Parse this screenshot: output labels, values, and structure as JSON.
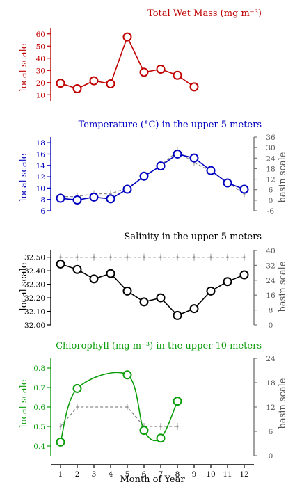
{
  "chart_data": [
    {
      "type": "line",
      "title": "Total Wet Mass (mg m⁻³)",
      "ylabel": "local scale",
      "color": "#c00000",
      "ylim": [
        5,
        65
      ],
      "yticks": [
        10,
        20,
        30,
        40,
        50,
        60
      ],
      "ytick_labels": [
        "10",
        "20",
        "30",
        "40",
        "50",
        "60"
      ],
      "smooth": false,
      "series": [
        {
          "x": [
            1,
            2,
            3,
            4,
            5,
            6,
            7,
            8,
            9
          ],
          "values": [
            19.5,
            15,
            21.5,
            19,
            57.5,
            28.5,
            31,
            26,
            16.5
          ]
        }
      ]
    },
    {
      "type": "line",
      "title": "Temperature (°C) in the upper 5 meters",
      "ylabel": "local scale",
      "y2label": "basin scale",
      "color": "#0000c0",
      "ylim": [
        6,
        19
      ],
      "yticks": [
        6,
        8,
        10,
        12,
        14,
        16,
        18
      ],
      "ytick_labels": [
        "6",
        "8",
        "10",
        "12",
        "14",
        "16",
        "18"
      ],
      "y2lim": [
        -6,
        36
      ],
      "y2ticks": [
        -6,
        0,
        6,
        12,
        18,
        24,
        30,
        36
      ],
      "y2tick_labels": [
        "-6",
        "0",
        "6",
        "12",
        "18",
        "24",
        "30",
        "36"
      ],
      "smooth": false,
      "series": [
        {
          "x": [
            1,
            2,
            3,
            4,
            5,
            6,
            7,
            8,
            9,
            10,
            11,
            12
          ],
          "values": [
            8.2,
            7.9,
            8.4,
            8.1,
            9.8,
            12.1,
            13.9,
            16,
            15.3,
            13.1,
            10.9,
            9.8
          ]
        }
      ],
      "basin_series": [
        {
          "x": [
            1,
            2,
            3,
            4,
            5,
            6,
            7,
            8,
            9,
            10,
            11,
            12
          ],
          "values": [
            8.5,
            8.5,
            9,
            9,
            10,
            12,
            14,
            16.5,
            14.5,
            13,
            11,
            9
          ]
        }
      ]
    },
    {
      "type": "line",
      "title": "Salinity in the upper 5 meters",
      "ylabel": "local scale",
      "y2label": "basin scale",
      "color": "#000000",
      "ylim": [
        32.0,
        32.55
      ],
      "yticks": [
        32.0,
        32.1,
        32.2,
        32.3,
        32.4,
        32.5
      ],
      "ytick_labels": [
        "32.00",
        "32.10",
        "32.20",
        "32.30",
        "32.40",
        "32.50"
      ],
      "y2lim": [
        0,
        40
      ],
      "y2ticks": [
        0,
        8,
        16,
        24,
        32,
        40
      ],
      "y2tick_labels": [
        "0",
        "8",
        "16",
        "24",
        "32",
        "40"
      ],
      "smooth": false,
      "series": [
        {
          "x": [
            1,
            2,
            3,
            4,
            5,
            6,
            7,
            8,
            9,
            10,
            11,
            12
          ],
          "values": [
            32.45,
            32.41,
            32.34,
            32.38,
            32.25,
            32.17,
            32.2,
            32.07,
            32.12,
            32.25,
            32.32,
            32.37
          ]
        }
      ],
      "basin_series": [
        {
          "x": [
            1,
            2,
            3,
            4,
            5,
            6,
            7,
            8,
            9,
            10,
            11,
            12
          ],
          "values": [
            32.5,
            32.5,
            32.5,
            32.5,
            32.5,
            32.5,
            32.5,
            32.5,
            32.5,
            32.5,
            32.5,
            32.5
          ]
        }
      ]
    },
    {
      "type": "line",
      "title": "Chlorophyll (mg m⁻³) in the upper 10 meters",
      "ylabel": "local scale",
      "y2label": "basin scale",
      "color": "#0a9e0a",
      "ylim": [
        0.35,
        0.85
      ],
      "yticks": [
        0.4,
        0.5,
        0.6,
        0.7,
        0.8
      ],
      "ytick_labels": [
        "0.4",
        "0.5",
        "0.6",
        "0.7",
        "0.8"
      ],
      "y2lim": [
        0,
        24
      ],
      "y2ticks": [
        0,
        6,
        12,
        18,
        24
      ],
      "y2tick_labels": [
        "0",
        "6",
        "12",
        "18",
        "24"
      ],
      "smooth": true,
      "series": [
        {
          "x": [
            1,
            2,
            5,
            6,
            7,
            8
          ],
          "values": [
            0.42,
            0.695,
            0.765,
            0.48,
            0.44,
            0.63
          ]
        }
      ],
      "basin_series": [
        {
          "x": [
            1,
            2,
            5,
            6,
            7,
            8
          ],
          "values": [
            0.5,
            0.6,
            0.6,
            0.5,
            0.5,
            0.5
          ]
        }
      ]
    }
  ],
  "x_axis": {
    "label": "Month of Year",
    "ticks": [
      1,
      2,
      3,
      4,
      5,
      6,
      7,
      8,
      9,
      10,
      11,
      12
    ],
    "tick_labels": [
      "1",
      "2",
      "3",
      "4",
      "5",
      "6",
      "7",
      "8",
      "9",
      "10",
      "11",
      "12"
    ]
  }
}
